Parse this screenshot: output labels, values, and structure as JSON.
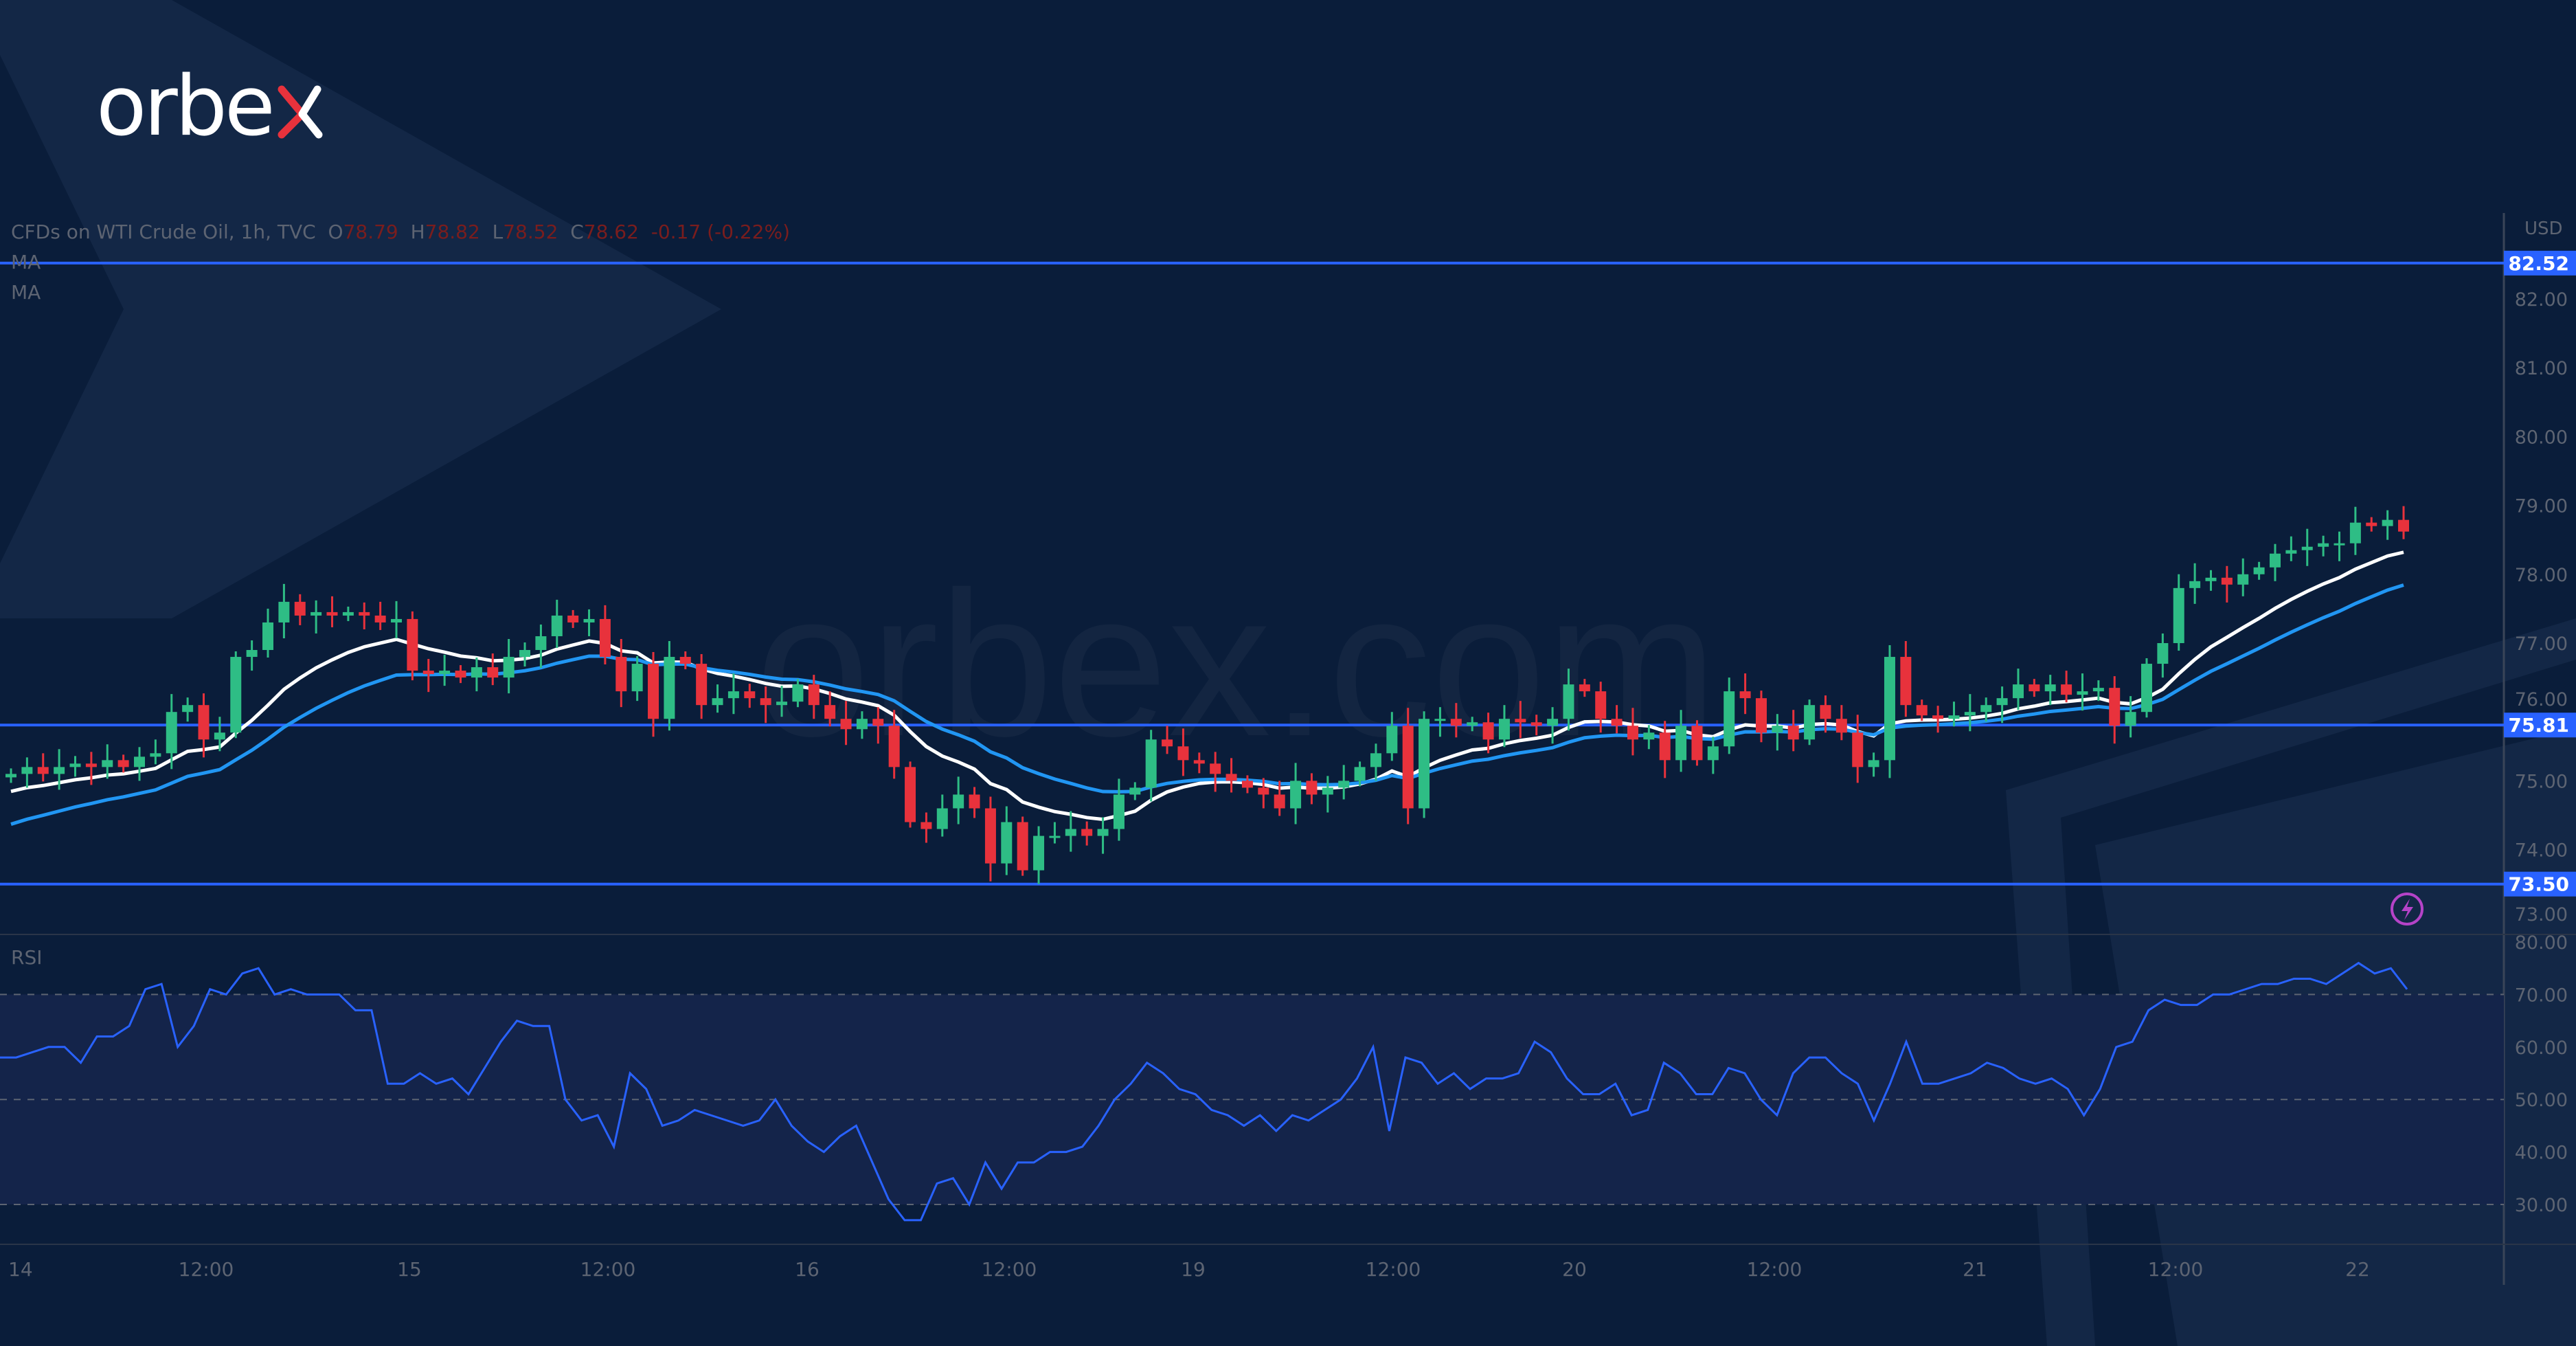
{
  "brand": {
    "logo_text": "orbex",
    "watermark": "orbex.com"
  },
  "header": {
    "symbol": "CFDs on WTI Crude Oil, 1h, TVC",
    "o_label": "O",
    "o": "78.79",
    "h_label": "H",
    "h": "78.82",
    "l_label": "L",
    "l": "78.52",
    "c_label": "C",
    "c": "78.62",
    "change": "-0.17 (-0.22%)",
    "ma1": "MA",
    "ma2": "MA",
    "rsi": "RSI",
    "currency": "USD"
  },
  "colors": {
    "background": "#0a1d3a",
    "up": "#2ebd85",
    "down": "#e8323c",
    "levels": "#2962ff",
    "ma_fast": "#ffffff",
    "ma_slow": "#2196f3",
    "rsi": "#2962ff",
    "rsi_band": "#14244a",
    "logo_accent": "#e8323c",
    "alert": "#b543c8"
  },
  "chart_data": [
    {
      "type": "candlestick",
      "title": "CFDs on WTI Crude Oil, 1h, TVC",
      "ylabel": "USD",
      "ylim": [
        72.75,
        82.75
      ],
      "y_ticks": [
        "82.00",
        "81.00",
        "80.00",
        "79.00",
        "78.00",
        "77.00",
        "76.00",
        "75.00",
        "74.00",
        "73.00"
      ],
      "x_ticks": [
        "14",
        "12:00",
        "15",
        "12:00",
        "16",
        "12:00",
        "19",
        "12:00",
        "20",
        "12:00",
        "21",
        "12:00",
        "22"
      ],
      "horizontal_levels": [
        {
          "value": 82.52,
          "label": "82.52"
        },
        {
          "value": 75.81,
          "label": "75.81"
        },
        {
          "value": 73.5,
          "label": "73.50"
        }
      ],
      "indicators": [
        "MA",
        "MA"
      ],
      "close": [
        75.1,
        75.2,
        75.1,
        75.2,
        75.25,
        75.2,
        75.3,
        75.2,
        75.35,
        75.4,
        76.0,
        76.1,
        75.6,
        75.7,
        76.8,
        76.9,
        77.3,
        77.6,
        77.4,
        77.45,
        77.4,
        77.45,
        77.4,
        77.3,
        77.35,
        76.6,
        76.55,
        76.6,
        76.5,
        76.65,
        76.5,
        76.8,
        76.9,
        77.1,
        77.4,
        77.3,
        77.35,
        76.8,
        76.3,
        76.7,
        75.9,
        76.8,
        76.7,
        76.1,
        76.2,
        76.3,
        76.2,
        76.1,
        76.15,
        76.4,
        76.1,
        75.9,
        75.75,
        75.9,
        75.8,
        75.2,
        74.4,
        74.3,
        74.6,
        74.8,
        74.6,
        73.8,
        74.4,
        73.7,
        74.2,
        74.2,
        74.3,
        74.2,
        74.3,
        74.8,
        74.9,
        75.6,
        75.5,
        75.3,
        75.25,
        75.1,
        75.0,
        74.9,
        74.8,
        74.6,
        75.0,
        74.8,
        74.9,
        75.0,
        75.2,
        75.4,
        75.8,
        74.6,
        75.9,
        75.9,
        75.8,
        75.85,
        75.6,
        75.9,
        75.85,
        75.8,
        75.9,
        76.4,
        76.3,
        75.9,
        75.8,
        75.6,
        75.7,
        75.3,
        75.8,
        75.3,
        75.5,
        76.3,
        76.2,
        75.7,
        75.8,
        75.6,
        76.1,
        75.9,
        75.7,
        75.2,
        75.3,
        76.8,
        76.1,
        75.95,
        75.9,
        75.95,
        76.0,
        76.1,
        76.2,
        76.4,
        76.3,
        76.4,
        76.25,
        76.3,
        76.35,
        75.8,
        76.0,
        76.7,
        77.0,
        77.8,
        77.9,
        77.95,
        77.85,
        78.0,
        78.1,
        78.3,
        78.35,
        78.4,
        78.45,
        78.45,
        78.75,
        78.7,
        78.79,
        78.62
      ]
    },
    {
      "type": "line",
      "title": "RSI",
      "ylim": [
        25,
        82
      ],
      "y_ticks": [
        "80.00",
        "70.00",
        "60.00",
        "50.00",
        "40.00",
        "30.00"
      ],
      "band": [
        30,
        70
      ],
      "reference_lines": [
        70,
        50,
        30
      ],
      "values": [
        58,
        58,
        59,
        60,
        60,
        57,
        62,
        62,
        64,
        71,
        72,
        60,
        64,
        71,
        70,
        74,
        75,
        70,
        71,
        70,
        70,
        70,
        67,
        67,
        53,
        53,
        55,
        53,
        54,
        51,
        56,
        61,
        65,
        64,
        64,
        50,
        46,
        47,
        41,
        55,
        52,
        45,
        46,
        48,
        47,
        46,
        45,
        46,
        50,
        45,
        42,
        40,
        43,
        45,
        38,
        31,
        27,
        27,
        34,
        35,
        30,
        38,
        33,
        38,
        38,
        40,
        40,
        41,
        45,
        50,
        53,
        57,
        55,
        52,
        51,
        48,
        47,
        45,
        47,
        44,
        47,
        46,
        48,
        50,
        54,
        60,
        44,
        58,
        57,
        53,
        55,
        52,
        54,
        54,
        55,
        61,
        59,
        54,
        51,
        51,
        53,
        47,
        48,
        57,
        55,
        51,
        51,
        56,
        55,
        50,
        47,
        55,
        58,
        58,
        55,
        53,
        46,
        53,
        61,
        53,
        53,
        54,
        55,
        57,
        56,
        54,
        53,
        54,
        52,
        47,
        52,
        60,
        61,
        67,
        69,
        68,
        68,
        70,
        70,
        71,
        72,
        72,
        73,
        73,
        72,
        74,
        76,
        74,
        75,
        71
      ]
    }
  ]
}
